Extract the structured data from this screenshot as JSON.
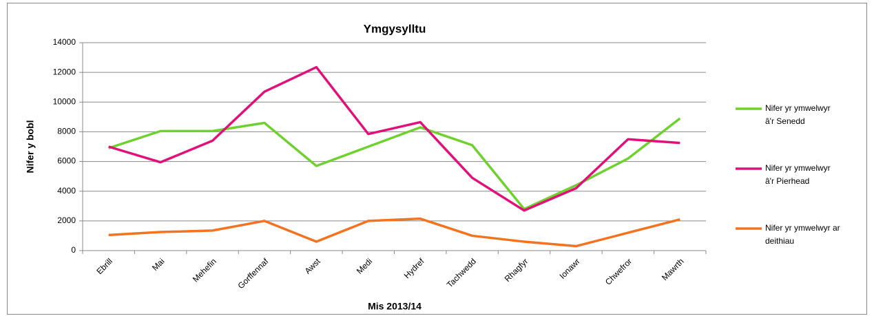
{
  "chart_data": {
    "type": "line",
    "title": "Ymgysylltu",
    "x_label": "Mis 2013/14",
    "y_label": "Nifer y bobl",
    "categories": [
      "Ebrill",
      "Mai",
      "Mehefin",
      "Gorffennaf",
      "Awst",
      "Medi",
      "Hydref",
      "Tachwedd",
      "Rhagfyr",
      "Ionawr",
      "Chwefror",
      "Mawrth"
    ],
    "series": [
      {
        "name": "Nifer yr ymwelwyr â'r Senedd",
        "color": "#6fd12f",
        "values": [
          6900,
          8050,
          8050,
          8600,
          5700,
          7000,
          8300,
          7100,
          2800,
          4400,
          6200,
          8900
        ]
      },
      {
        "name": "Nifer yr ymwelwyr â'r Pierhead",
        "color": "#e0127a",
        "values": [
          7000,
          5950,
          7400,
          10700,
          12350,
          7850,
          8650,
          4900,
          2700,
          4200,
          7500,
          7250
        ]
      },
      {
        "name": "Nifer yr ymwelwyr ar deithiau",
        "color": "#f37321",
        "values": [
          1050,
          1250,
          1350,
          2000,
          600,
          2000,
          2150,
          1000,
          600,
          300,
          1200,
          2100
        ]
      }
    ],
    "ylim": [
      0,
      14000
    ],
    "yticks": [
      0,
      2000,
      4000,
      6000,
      8000,
      10000,
      12000,
      14000
    ],
    "grid": true,
    "legend": "right"
  }
}
